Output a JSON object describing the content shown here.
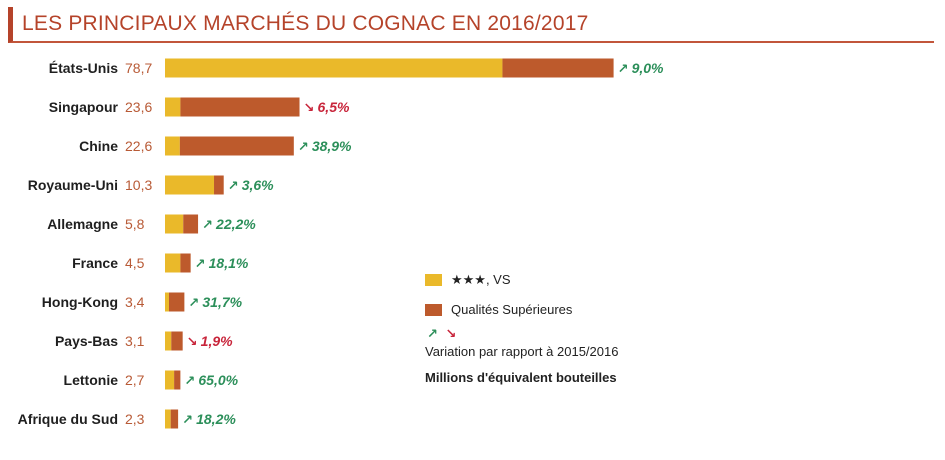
{
  "title": "LES PRINCIPAUX MARCHÉS DU COGNAC EN 2016/2017",
  "colors": {
    "vs": "#eab92a",
    "superieures": "#bd5a2c",
    "up": "#2c8f5a",
    "down": "#c8243a",
    "value_text": "#b85a36",
    "title": "#b5432a"
  },
  "legend": {
    "vs_label": "★★★, VS",
    "sup_label": "Qualités Supérieures",
    "up_arrow": "↗",
    "down_arrow": "↘",
    "variation_label": "Variation par rapport à 2015/2016",
    "units_label": "Millions d'équivalent bouteilles"
  },
  "chart_data": {
    "type": "bar",
    "orientation": "horizontal",
    "stacked": true,
    "title": "LES PRINCIPAUX MARCHÉS DU COGNAC EN 2016/2017",
    "unit": "Millions d'équivalent bouteilles",
    "categories": [
      "États-Unis",
      "Singapour",
      "Chine",
      "Royaume-Uni",
      "Allemagne",
      "France",
      "Hong-Kong",
      "Pays-Bas",
      "Lettonie",
      "Afrique du Sud"
    ],
    "totals": [
      78.7,
      23.6,
      22.6,
      10.3,
      5.8,
      4.5,
      3.4,
      3.1,
      2.7,
      2.3
    ],
    "total_labels": [
      "78,7",
      "23,6",
      "22,6",
      "10,3",
      "5,8",
      "4,5",
      "3,4",
      "3,1",
      "2,7",
      "2,3"
    ],
    "series": [
      {
        "name": "★★★, VS",
        "values": [
          59.2,
          2.7,
          2.6,
          8.6,
          3.2,
          2.7,
          0.7,
          1.1,
          1.6,
          1.0
        ]
      },
      {
        "name": "Qualités Supérieures",
        "values": [
          19.5,
          20.9,
          20.0,
          1.7,
          2.6,
          1.8,
          2.7,
          2.0,
          1.1,
          1.3
        ]
      }
    ],
    "variation": [
      {
        "direction": "up",
        "label": "9,0%"
      },
      {
        "direction": "down",
        "label": "6,5%"
      },
      {
        "direction": "up",
        "label": "38,9%"
      },
      {
        "direction": "up",
        "label": "3,6%"
      },
      {
        "direction": "up",
        "label": "22,2%"
      },
      {
        "direction": "up",
        "label": "18,1%"
      },
      {
        "direction": "up",
        "label": "31,7%"
      },
      {
        "direction": "down",
        "label": "1,9%"
      },
      {
        "direction": "up",
        "label": "65,0%"
      },
      {
        "direction": "up",
        "label": "18,2%"
      }
    ],
    "legend_position": "right"
  }
}
